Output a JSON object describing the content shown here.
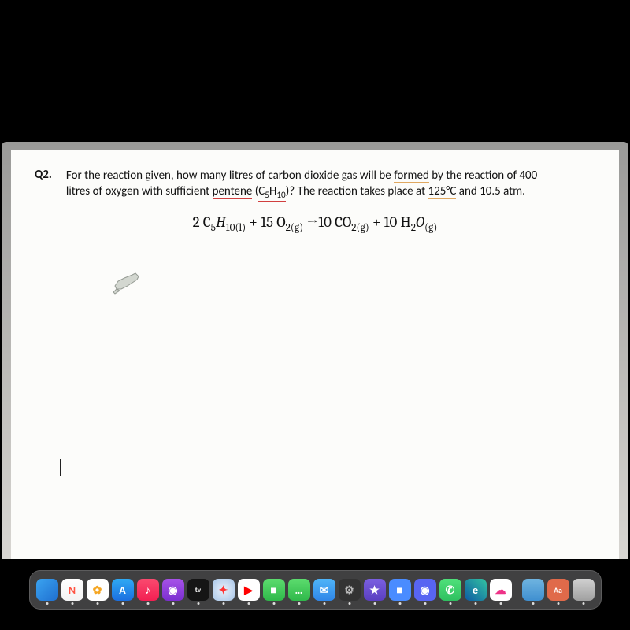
{
  "question": {
    "label": "Q2.",
    "line1a": "For the reaction given, how many litres of carbon dioxide gas will be ",
    "formed": "formed",
    "line1b": " by the reaction of 400",
    "line2a": "litres of oxygen with sufficient ",
    "pentene": "pentene",
    "line2b": " (",
    "formula_pre": "C",
    "formula_5": "5",
    "formula_mid": "H",
    "formula_10": "10",
    "line2c": ")? The reaction takes place at ",
    "temp": "125°C",
    "line2d": " and 10.5 atm."
  },
  "equation": {
    "part1": "2 C",
    "sub1": "5",
    "part2": "H",
    "sub2": "10(l)",
    "part3": " + 15 O",
    "sub3": "2(g)",
    "arrow": " →10 CO",
    "sub4": "2(g)",
    "part4": " + 10 H",
    "sub5": "2",
    "part5": "O",
    "sub6": "(g)"
  },
  "dock": {
    "icons": [
      {
        "name": "finder-icon",
        "bg": "linear-gradient(135deg,#3aa3f0,#1f6fd0)",
        "glyph": ""
      },
      {
        "name": "news-icon",
        "bg": "linear-gradient(#fff,#f3f3f3)",
        "glyph": "N",
        "color": "#f54"
      },
      {
        "name": "photos-icon",
        "bg": "#fff",
        "glyph": "✿",
        "color": "#f5a623"
      },
      {
        "name": "appstore-icon",
        "bg": "linear-gradient(#2fa9f4,#1b6fe0)",
        "glyph": "A"
      },
      {
        "name": "music-icon",
        "bg": "linear-gradient(#fa4a6f,#f21f52)",
        "glyph": "♪"
      },
      {
        "name": "podcasts-icon",
        "bg": "linear-gradient(#a652e8,#7b2fd0)",
        "glyph": "◉"
      },
      {
        "name": "appletv-icon",
        "bg": "#151515",
        "glyph": "tv",
        "fs": "9px"
      },
      {
        "name": "safari-icon",
        "bg": "radial-gradient(#e8f0fa,#a8c6e8)",
        "glyph": "✦",
        "color": "#f33"
      },
      {
        "name": "youtube-icon",
        "bg": "#fff",
        "glyph": "▶",
        "color": "#f00"
      },
      {
        "name": "facetime-icon",
        "bg": "linear-gradient(#5cdc6e,#2fb84a)",
        "glyph": "■"
      },
      {
        "name": "messages-icon",
        "bg": "linear-gradient(#5cdc6e,#2fb84a)",
        "glyph": "…"
      },
      {
        "name": "mail-icon",
        "bg": "linear-gradient(#4fb4f8,#2f86e8)",
        "glyph": "✉"
      },
      {
        "name": "settings-icon",
        "bg": "#333",
        "glyph": "⚙",
        "color": "#bbb"
      },
      {
        "name": "star-icon",
        "bg": "linear-gradient(#7a5fe0,#5a3fc0)",
        "glyph": "★"
      },
      {
        "name": "zoom-icon",
        "bg": "#4a8cff",
        "glyph": "■"
      },
      {
        "name": "discord-icon",
        "bg": "#5865f2",
        "glyph": "◉"
      },
      {
        "name": "whatsapp-icon",
        "bg": "linear-gradient(#4fe07a,#2fc060)",
        "glyph": "✆"
      },
      {
        "name": "edge-icon",
        "bg": "linear-gradient(45deg,#0c59a4,#33c3a0)",
        "glyph": "e"
      },
      {
        "name": "onedrive-icon",
        "bg": "#fff",
        "glyph": "☁",
        "color": "#e38"
      }
    ],
    "tray": [
      {
        "name": "folder-icon",
        "bg": "linear-gradient(#6fb4e0,#3f8fd0)",
        "glyph": ""
      },
      {
        "name": "font-icon",
        "bg": "#e06a4a",
        "glyph": "Aa",
        "fs": "10px"
      },
      {
        "name": "trash-icon",
        "bg": "linear-gradient(#d0d0d0,#a0a0a0)",
        "glyph": ""
      }
    ]
  },
  "colors": {
    "page_bg": "#000000",
    "doc_bg": "#fcfcfa",
    "bezel": "#b8b6b0",
    "underline_red": "#d13f3f",
    "underline_amber": "#e0a860"
  }
}
